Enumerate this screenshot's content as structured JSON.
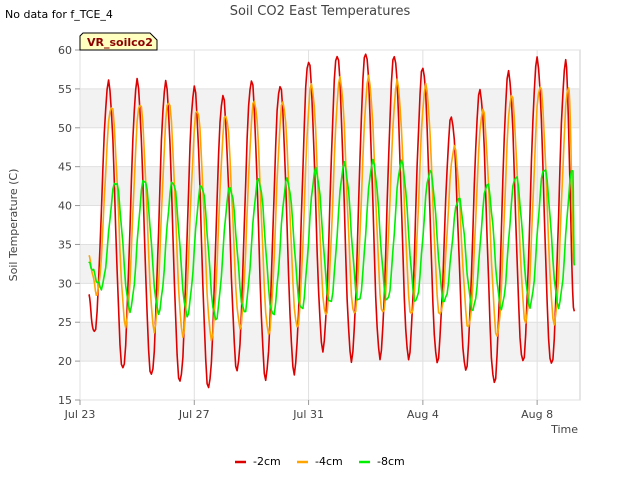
{
  "status_note": "No data for f_TCE_4",
  "badge_label": "VR_soilco2",
  "chart_data": {
    "type": "line",
    "title": "Soil CO2 East Temperatures",
    "xlabel": "Time",
    "ylabel": "Soil Temperature (C)",
    "ylim": [
      15,
      60
    ],
    "yticks": [
      15,
      20,
      25,
      30,
      35,
      40,
      45,
      50,
      55,
      60
    ],
    "xlim": [
      0,
      17.5
    ],
    "xticks": [
      {
        "day": 0,
        "label": "Jul 23"
      },
      {
        "day": 4,
        "label": "Jul 27"
      },
      {
        "day": 8,
        "label": "Jul 31"
      },
      {
        "day": 12,
        "label": "Aug 4"
      },
      {
        "day": 16,
        "label": "Aug 8"
      }
    ],
    "grid": true,
    "legend_position": "bottom-center",
    "series": [
      {
        "name": "-2cm",
        "color": "#dd0000",
        "start": 0.3,
        "end": 17.3,
        "minima": [
          [
            0.5,
            23.5
          ],
          [
            1.5,
            18.8
          ],
          [
            2.5,
            18.0
          ],
          [
            3.5,
            17.2
          ],
          [
            4.5,
            16.5
          ],
          [
            5.5,
            18.8
          ],
          [
            6.5,
            17.7
          ],
          [
            7.5,
            18.5
          ],
          [
            8.5,
            21.5
          ],
          [
            9.5,
            20.2
          ],
          [
            10.5,
            20.5
          ],
          [
            11.5,
            20.4
          ],
          [
            12.5,
            19.9
          ],
          [
            13.5,
            18.8
          ],
          [
            14.5,
            17.1
          ],
          [
            15.5,
            19.8
          ],
          [
            16.5,
            19.4
          ]
        ],
        "maxima": [
          [
            1.0,
            55.8
          ],
          [
            2.0,
            56.0
          ],
          [
            3.0,
            55.8
          ],
          [
            4.0,
            55.2
          ],
          [
            5.0,
            54.1
          ],
          [
            6.0,
            56.1
          ],
          [
            7.0,
            55.5
          ],
          [
            8.0,
            58.7
          ],
          [
            9.0,
            59.5
          ],
          [
            10.0,
            59.8
          ],
          [
            11.0,
            59.4
          ],
          [
            12.0,
            57.8
          ],
          [
            13.0,
            51.4
          ],
          [
            14.0,
            54.8
          ],
          [
            15.0,
            57.1
          ],
          [
            16.0,
            58.8
          ],
          [
            17.0,
            58.4
          ]
        ],
        "first": 28.3,
        "last": 26.4
      },
      {
        "name": "-4cm",
        "color": "#ffa500",
        "start": 0.3,
        "end": 17.3,
        "minima": [
          [
            0.6,
            28.7
          ],
          [
            1.6,
            24.6
          ],
          [
            2.6,
            24.0
          ],
          [
            3.6,
            23.4
          ],
          [
            4.6,
            22.9
          ],
          [
            5.6,
            24.3
          ],
          [
            6.6,
            23.5
          ],
          [
            7.6,
            24.3
          ],
          [
            8.6,
            25.8
          ],
          [
            9.6,
            25.9
          ],
          [
            10.6,
            26.0
          ],
          [
            11.6,
            25.8
          ],
          [
            12.6,
            25.8
          ],
          [
            13.6,
            24.3
          ],
          [
            14.6,
            23.2
          ],
          [
            15.6,
            25.0
          ],
          [
            16.6,
            24.9
          ]
        ],
        "maxima": [
          [
            1.1,
            52.8
          ],
          [
            2.1,
            53.2
          ],
          [
            3.1,
            53.5
          ],
          [
            4.1,
            52.4
          ],
          [
            5.1,
            51.7
          ],
          [
            6.1,
            53.5
          ],
          [
            7.1,
            53.3
          ],
          [
            8.1,
            55.5
          ],
          [
            9.1,
            56.3
          ],
          [
            10.1,
            56.4
          ],
          [
            11.1,
            55.9
          ],
          [
            12.1,
            55.4
          ],
          [
            13.1,
            47.5
          ],
          [
            14.1,
            52.3
          ],
          [
            15.1,
            54.2
          ],
          [
            16.1,
            55.4
          ],
          [
            17.1,
            55.4
          ]
        ],
        "first": 33.3,
        "last": 32.3
      },
      {
        "name": "-8cm",
        "color": "#00ee00",
        "start": 0.3,
        "end": 17.3,
        "minima": [
          [
            0.75,
            29.5
          ],
          [
            1.75,
            26.6
          ],
          [
            2.75,
            26.3
          ],
          [
            3.75,
            25.9
          ],
          [
            4.75,
            25.4
          ],
          [
            5.75,
            26.3
          ],
          [
            6.75,
            25.9
          ],
          [
            7.75,
            26.6
          ],
          [
            8.75,
            27.4
          ],
          [
            9.75,
            27.6
          ],
          [
            10.75,
            27.7
          ],
          [
            11.75,
            27.6
          ],
          [
            12.75,
            27.6
          ],
          [
            13.75,
            26.6
          ],
          [
            14.75,
            26.8
          ],
          [
            15.75,
            27.1
          ],
          [
            16.75,
            27.1
          ]
        ],
        "maxima": [
          [
            1.25,
            43.1
          ],
          [
            2.25,
            43.4
          ],
          [
            3.25,
            43.1
          ],
          [
            4.25,
            42.6
          ],
          [
            5.25,
            42.3
          ],
          [
            6.25,
            43.3
          ],
          [
            7.25,
            43.3
          ],
          [
            8.25,
            44.6
          ],
          [
            9.25,
            45.3
          ],
          [
            10.25,
            45.6
          ],
          [
            11.25,
            45.6
          ],
          [
            12.25,
            44.4
          ],
          [
            13.25,
            40.9
          ],
          [
            14.25,
            42.8
          ],
          [
            15.25,
            43.8
          ],
          [
            16.25,
            44.8
          ],
          [
            17.25,
            44.8
          ]
        ],
        "first": 32.5,
        "last": 32.3
      }
    ]
  }
}
